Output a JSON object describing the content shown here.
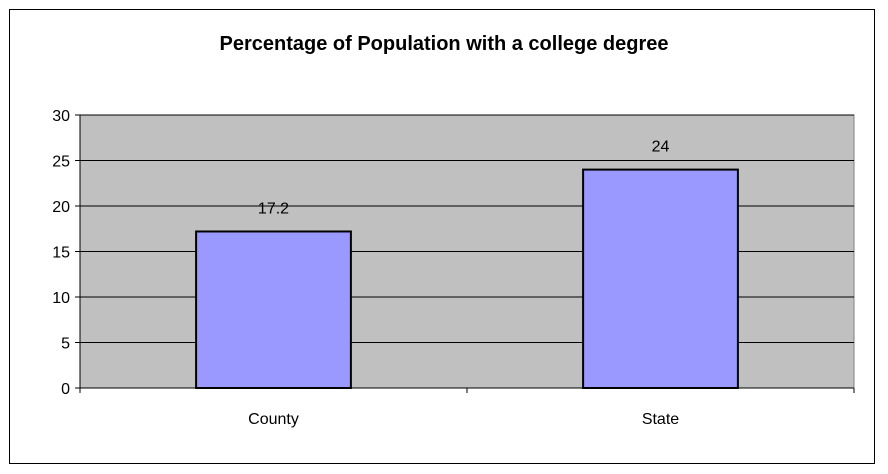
{
  "chart_data": {
    "type": "bar",
    "title": "Percentage of Population with a college degree",
    "categories": [
      "County",
      "State"
    ],
    "values": [
      17.2,
      24
    ],
    "data_labels": [
      "17.2",
      "24"
    ],
    "ylim": [
      0,
      30
    ],
    "y_ticks": [
      0,
      5,
      10,
      15,
      20,
      25,
      30
    ],
    "xlabel": "",
    "ylabel": "",
    "grid": true,
    "legend": "none",
    "colors": {
      "bar_fill": "#9999ff",
      "plot_bg": "#c0c0c0",
      "gridline": "#000000"
    }
  }
}
